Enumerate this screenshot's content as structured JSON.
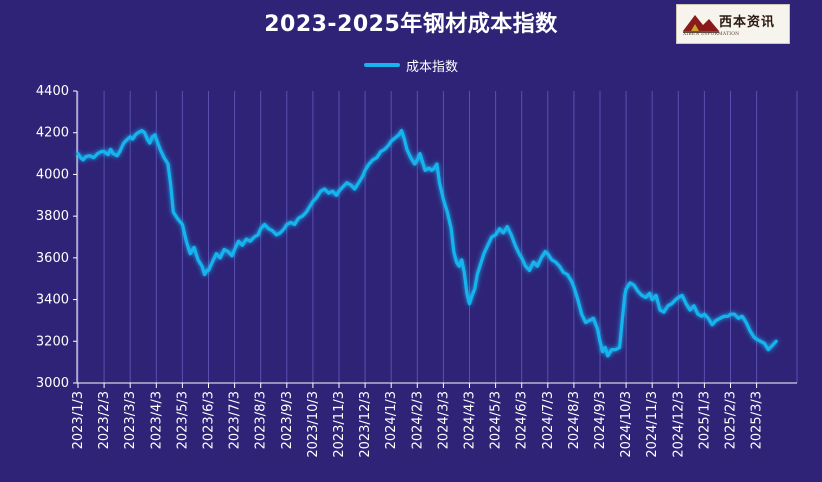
{
  "logo": {
    "brand": "西本资讯",
    "brand_sub": "XIBEN INFORMATION"
  },
  "chart_data": {
    "type": "line",
    "title": "2023-2025年钢材成本指数",
    "xlabel": "",
    "ylabel": "",
    "ylim": [
      3000,
      4400
    ],
    "yticks": [
      3000,
      3200,
      3400,
      3600,
      3800,
      4000,
      4200,
      4400
    ],
    "categories": [
      "2023/1/3",
      "2023/2/3",
      "2023/3/3",
      "2023/4/3",
      "2023/5/3",
      "2023/6/3",
      "2023/7/3",
      "2023/8/3",
      "2023/9/3",
      "2023/10/3",
      "2023/11/3",
      "2023/12/3",
      "2024/1/3",
      "2024/2/3",
      "2024/3/3",
      "2024/4/3",
      "2024/5/3",
      "2024/6/3",
      "2024/7/3",
      "2024/8/3",
      "2024/9/3",
      "2024/10/3",
      "2024/11/3",
      "2024/12/3",
      "2025/1/3",
      "2025/2/3",
      "2025/3/3"
    ],
    "grid": "vertical",
    "legend_position": "top",
    "line_color": "#19b4ee",
    "series": [
      {
        "name": "成本指数",
        "points": [
          [
            0.0,
            4100
          ],
          [
            0.1,
            4080
          ],
          [
            0.2,
            4070
          ],
          [
            0.3,
            4085
          ],
          [
            0.45,
            4090
          ],
          [
            0.6,
            4080
          ],
          [
            0.75,
            4100
          ],
          [
            0.9,
            4110
          ],
          [
            1.0,
            4110
          ],
          [
            1.15,
            4095
          ],
          [
            1.25,
            4120
          ],
          [
            1.35,
            4100
          ],
          [
            1.5,
            4090
          ],
          [
            1.6,
            4110
          ],
          [
            1.75,
            4150
          ],
          [
            1.9,
            4170
          ],
          [
            2.0,
            4180
          ],
          [
            2.1,
            4170
          ],
          [
            2.2,
            4190
          ],
          [
            2.3,
            4200
          ],
          [
            2.45,
            4210
          ],
          [
            2.55,
            4200
          ],
          [
            2.65,
            4170
          ],
          [
            2.75,
            4150
          ],
          [
            2.85,
            4180
          ],
          [
            2.95,
            4190
          ],
          [
            3.0,
            4170
          ],
          [
            3.15,
            4120
          ],
          [
            3.3,
            4080
          ],
          [
            3.45,
            4050
          ],
          [
            3.55,
            3950
          ],
          [
            3.65,
            3820
          ],
          [
            3.8,
            3790
          ],
          [
            4.0,
            3760
          ],
          [
            4.15,
            3680
          ],
          [
            4.3,
            3620
          ],
          [
            4.45,
            3650
          ],
          [
            4.6,
            3590
          ],
          [
            4.75,
            3560
          ],
          [
            4.85,
            3520
          ],
          [
            4.95,
            3540
          ],
          [
            5.0,
            3540
          ],
          [
            5.15,
            3580
          ],
          [
            5.3,
            3620
          ],
          [
            5.45,
            3600
          ],
          [
            5.6,
            3640
          ],
          [
            5.75,
            3630
          ],
          [
            5.9,
            3610
          ],
          [
            6.0,
            3640
          ],
          [
            6.15,
            3680
          ],
          [
            6.3,
            3660
          ],
          [
            6.45,
            3690
          ],
          [
            6.6,
            3680
          ],
          [
            6.75,
            3700
          ],
          [
            6.9,
            3710
          ],
          [
            7.0,
            3740
          ],
          [
            7.15,
            3760
          ],
          [
            7.3,
            3740
          ],
          [
            7.45,
            3730
          ],
          [
            7.6,
            3710
          ],
          [
            7.75,
            3720
          ],
          [
            7.9,
            3740
          ],
          [
            8.0,
            3760
          ],
          [
            8.15,
            3770
          ],
          [
            8.3,
            3760
          ],
          [
            8.45,
            3790
          ],
          [
            8.6,
            3800
          ],
          [
            8.75,
            3820
          ],
          [
            8.9,
            3850
          ],
          [
            9.0,
            3870
          ],
          [
            9.15,
            3890
          ],
          [
            9.3,
            3920
          ],
          [
            9.45,
            3930
          ],
          [
            9.6,
            3910
          ],
          [
            9.75,
            3920
          ],
          [
            9.9,
            3900
          ],
          [
            10.0,
            3920
          ],
          [
            10.15,
            3940
          ],
          [
            10.3,
            3960
          ],
          [
            10.45,
            3950
          ],
          [
            10.6,
            3930
          ],
          [
            10.75,
            3960
          ],
          [
            10.9,
            3990
          ],
          [
            11.0,
            4020
          ],
          [
            11.15,
            4050
          ],
          [
            11.3,
            4070
          ],
          [
            11.45,
            4080
          ],
          [
            11.6,
            4110
          ],
          [
            11.75,
            4120
          ],
          [
            11.9,
            4140
          ],
          [
            12.0,
            4160
          ],
          [
            12.1,
            4170
          ],
          [
            12.2,
            4180
          ],
          [
            12.3,
            4190
          ],
          [
            12.4,
            4210
          ],
          [
            12.5,
            4170
          ],
          [
            12.6,
            4120
          ],
          [
            12.75,
            4080
          ],
          [
            12.9,
            4050
          ],
          [
            13.0,
            4070
          ],
          [
            13.1,
            4100
          ],
          [
            13.2,
            4060
          ],
          [
            13.3,
            4020
          ],
          [
            13.45,
            4030
          ],
          [
            13.55,
            4020
          ],
          [
            13.65,
            4030
          ],
          [
            13.75,
            4050
          ],
          [
            13.85,
            3960
          ],
          [
            14.0,
            3880
          ],
          [
            14.15,
            3820
          ],
          [
            14.3,
            3740
          ],
          [
            14.4,
            3630
          ],
          [
            14.5,
            3580
          ],
          [
            14.6,
            3560
          ],
          [
            14.7,
            3590
          ],
          [
            14.8,
            3530
          ],
          [
            14.9,
            3430
          ],
          [
            15.0,
            3380
          ],
          [
            15.1,
            3420
          ],
          [
            15.2,
            3450
          ],
          [
            15.3,
            3520
          ],
          [
            15.4,
            3560
          ],
          [
            15.55,
            3620
          ],
          [
            15.7,
            3660
          ],
          [
            15.85,
            3700
          ],
          [
            16.0,
            3710
          ],
          [
            16.15,
            3740
          ],
          [
            16.3,
            3720
          ],
          [
            16.45,
            3750
          ],
          [
            16.6,
            3710
          ],
          [
            16.75,
            3660
          ],
          [
            16.9,
            3620
          ],
          [
            17.0,
            3600
          ],
          [
            17.15,
            3560
          ],
          [
            17.3,
            3540
          ],
          [
            17.45,
            3580
          ],
          [
            17.6,
            3560
          ],
          [
            17.75,
            3600
          ],
          [
            17.9,
            3630
          ],
          [
            18.0,
            3620
          ],
          [
            18.15,
            3590
          ],
          [
            18.3,
            3580
          ],
          [
            18.45,
            3560
          ],
          [
            18.6,
            3530
          ],
          [
            18.75,
            3520
          ],
          [
            18.9,
            3490
          ],
          [
            19.0,
            3460
          ],
          [
            19.15,
            3400
          ],
          [
            19.3,
            3330
          ],
          [
            19.45,
            3290
          ],
          [
            19.6,
            3300
          ],
          [
            19.75,
            3310
          ],
          [
            19.9,
            3260
          ],
          [
            20.0,
            3200
          ],
          [
            20.1,
            3150
          ],
          [
            20.2,
            3170
          ],
          [
            20.3,
            3130
          ],
          [
            20.45,
            3160
          ],
          [
            20.6,
            3160
          ],
          [
            20.75,
            3170
          ],
          [
            20.85,
            3300
          ],
          [
            20.95,
            3420
          ],
          [
            21.0,
            3450
          ],
          [
            21.15,
            3480
          ],
          [
            21.3,
            3470
          ],
          [
            21.45,
            3440
          ],
          [
            21.6,
            3420
          ],
          [
            21.75,
            3410
          ],
          [
            21.9,
            3430
          ],
          [
            22.0,
            3400
          ],
          [
            22.15,
            3420
          ],
          [
            22.3,
            3350
          ],
          [
            22.45,
            3340
          ],
          [
            22.6,
            3370
          ],
          [
            22.75,
            3380
          ],
          [
            22.9,
            3400
          ],
          [
            23.0,
            3410
          ],
          [
            23.15,
            3420
          ],
          [
            23.3,
            3380
          ],
          [
            23.45,
            3350
          ],
          [
            23.6,
            3370
          ],
          [
            23.75,
            3330
          ],
          [
            23.9,
            3320
          ],
          [
            24.0,
            3330
          ],
          [
            24.15,
            3310
          ],
          [
            24.3,
            3280
          ],
          [
            24.45,
            3300
          ],
          [
            24.6,
            3310
          ],
          [
            24.75,
            3320
          ],
          [
            24.9,
            3320
          ],
          [
            25.0,
            3330
          ],
          [
            25.15,
            3330
          ],
          [
            25.3,
            3310
          ],
          [
            25.45,
            3320
          ],
          [
            25.6,
            3290
          ],
          [
            25.75,
            3250
          ],
          [
            25.9,
            3220
          ],
          [
            26.0,
            3210
          ],
          [
            26.15,
            3200
          ],
          [
            26.3,
            3190
          ],
          [
            26.45,
            3160
          ],
          [
            26.6,
            3180
          ],
          [
            26.75,
            3200
          ]
        ]
      }
    ]
  }
}
